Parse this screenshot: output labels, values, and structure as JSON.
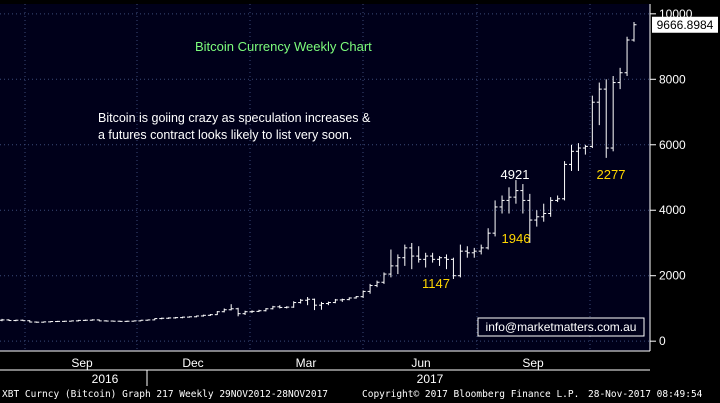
{
  "chart_data": {
    "type": "ohlc",
    "title": "Bitcoin Currency Weekly Chart",
    "annotation": "Bitcoin is goiing crazy as speculation increases &\na futures contract looks likely to list very soon.",
    "contact": "info@marketmatters.com.au",
    "last_price_label": "9666.8984",
    "ylim": [
      -300,
      10300
    ],
    "y_ticks": [
      0,
      2000,
      4000,
      6000,
      8000,
      10000
    ],
    "y_tick_labels": [
      "0",
      "2000",
      "4000",
      "6000",
      "8000",
      "10000"
    ],
    "x_month_labels": [
      "Sep",
      "Dec",
      "Mar",
      "Jun",
      "Sep"
    ],
    "x_year_labels": [
      "2016",
      "2017"
    ],
    "callouts": [
      {
        "text": "4921",
        "color": "#ffffff"
      },
      {
        "text": "1946",
        "color": "#ffd700"
      },
      {
        "text": "1147",
        "color": "#ffd700"
      },
      {
        "text": "2277",
        "color": "#ffd700"
      }
    ],
    "series": [
      {
        "name": "XBT Curncy",
        "values": [
          {
            "o": 640,
            "h": 680,
            "l": 610,
            "c": 650
          },
          {
            "o": 650,
            "h": 670,
            "l": 620,
            "c": 630
          },
          {
            "o": 630,
            "h": 655,
            "l": 610,
            "c": 640
          },
          {
            "o": 640,
            "h": 660,
            "l": 620,
            "c": 625
          },
          {
            "o": 625,
            "h": 640,
            "l": 570,
            "c": 585
          },
          {
            "o": 585,
            "h": 600,
            "l": 560,
            "c": 580
          },
          {
            "o": 580,
            "h": 600,
            "l": 565,
            "c": 590
          },
          {
            "o": 590,
            "h": 610,
            "l": 575,
            "c": 600
          },
          {
            "o": 600,
            "h": 620,
            "l": 585,
            "c": 605
          },
          {
            "o": 605,
            "h": 620,
            "l": 590,
            "c": 610
          },
          {
            "o": 610,
            "h": 630,
            "l": 600,
            "c": 620
          },
          {
            "o": 620,
            "h": 650,
            "l": 605,
            "c": 635
          },
          {
            "o": 635,
            "h": 660,
            "l": 620,
            "c": 640
          },
          {
            "o": 640,
            "h": 670,
            "l": 625,
            "c": 650
          },
          {
            "o": 650,
            "h": 665,
            "l": 610,
            "c": 620
          },
          {
            "o": 620,
            "h": 640,
            "l": 600,
            "c": 615
          },
          {
            "o": 615,
            "h": 630,
            "l": 600,
            "c": 610
          },
          {
            "o": 610,
            "h": 625,
            "l": 595,
            "c": 605
          },
          {
            "o": 605,
            "h": 625,
            "l": 590,
            "c": 610
          },
          {
            "o": 610,
            "h": 630,
            "l": 600,
            "c": 620
          },
          {
            "o": 620,
            "h": 650,
            "l": 610,
            "c": 640
          },
          {
            "o": 640,
            "h": 660,
            "l": 625,
            "c": 650
          },
          {
            "o": 650,
            "h": 700,
            "l": 640,
            "c": 690
          },
          {
            "o": 690,
            "h": 720,
            "l": 670,
            "c": 700
          },
          {
            "o": 700,
            "h": 730,
            "l": 680,
            "c": 710
          },
          {
            "o": 710,
            "h": 740,
            "l": 690,
            "c": 720
          },
          {
            "o": 720,
            "h": 750,
            "l": 700,
            "c": 735
          },
          {
            "o": 735,
            "h": 760,
            "l": 720,
            "c": 745
          },
          {
            "o": 745,
            "h": 780,
            "l": 730,
            "c": 770
          },
          {
            "o": 770,
            "h": 810,
            "l": 750,
            "c": 790
          },
          {
            "o": 790,
            "h": 830,
            "l": 770,
            "c": 810
          },
          {
            "o": 810,
            "h": 920,
            "l": 800,
            "c": 900
          },
          {
            "o": 900,
            "h": 1000,
            "l": 880,
            "c": 960
          },
          {
            "o": 960,
            "h": 1130,
            "l": 940,
            "c": 990
          },
          {
            "o": 990,
            "h": 1020,
            "l": 760,
            "c": 840
          },
          {
            "o": 840,
            "h": 930,
            "l": 800,
            "c": 900
          },
          {
            "o": 900,
            "h": 940,
            "l": 860,
            "c": 910
          },
          {
            "o": 910,
            "h": 960,
            "l": 890,
            "c": 930
          },
          {
            "o": 930,
            "h": 1010,
            "l": 910,
            "c": 990
          },
          {
            "o": 990,
            "h": 1080,
            "l": 970,
            "c": 1050
          },
          {
            "o": 1050,
            "h": 1100,
            "l": 1000,
            "c": 1030
          },
          {
            "o": 1030,
            "h": 1070,
            "l": 1000,
            "c": 1040
          },
          {
            "o": 1040,
            "h": 1220,
            "l": 1020,
            "c": 1180
          },
          {
            "o": 1180,
            "h": 1290,
            "l": 1150,
            "c": 1250
          },
          {
            "o": 1250,
            "h": 1350,
            "l": 1100,
            "c": 1280
          },
          {
            "o": 1280,
            "h": 1300,
            "l": 950,
            "c": 1100
          },
          {
            "o": 1100,
            "h": 1200,
            "l": 960,
            "c": 1150
          },
          {
            "o": 1150,
            "h": 1210,
            "l": 1100,
            "c": 1180
          },
          {
            "o": 1180,
            "h": 1290,
            "l": 1160,
            "c": 1260
          },
          {
            "o": 1260,
            "h": 1300,
            "l": 1200,
            "c": 1270
          },
          {
            "o": 1270,
            "h": 1340,
            "l": 1250,
            "c": 1320
          },
          {
            "o": 1320,
            "h": 1380,
            "l": 1300,
            "c": 1360
          },
          {
            "o": 1360,
            "h": 1550,
            "l": 1320,
            "c": 1520
          },
          {
            "o": 1520,
            "h": 1750,
            "l": 1450,
            "c": 1700
          },
          {
            "o": 1700,
            "h": 1850,
            "l": 1650,
            "c": 1800
          },
          {
            "o": 1800,
            "h": 2100,
            "l": 1750,
            "c": 2050
          },
          {
            "o": 2050,
            "h": 2800,
            "l": 1950,
            "c": 2300
          },
          {
            "o": 2300,
            "h": 2650,
            "l": 2050,
            "c": 2550
          },
          {
            "o": 2550,
            "h": 2950,
            "l": 2300,
            "c": 2850
          },
          {
            "o": 2850,
            "h": 3000,
            "l": 2200,
            "c": 2600
          },
          {
            "o": 2600,
            "h": 2900,
            "l": 2400,
            "c": 2500
          },
          {
            "o": 2500,
            "h": 2700,
            "l": 2250,
            "c": 2600
          },
          {
            "o": 2600,
            "h": 2700,
            "l": 2400,
            "c": 2500
          },
          {
            "o": 2500,
            "h": 2600,
            "l": 2300,
            "c": 2550
          },
          {
            "o": 2550,
            "h": 2650,
            "l": 2200,
            "c": 2500
          },
          {
            "o": 2500,
            "h": 2550,
            "l": 1900,
            "c": 2000
          },
          {
            "o": 2000,
            "h": 2950,
            "l": 1950,
            "c": 2750
          },
          {
            "o": 2750,
            "h": 2900,
            "l": 2550,
            "c": 2700
          },
          {
            "o": 2700,
            "h": 2850,
            "l": 2550,
            "c": 2750
          },
          {
            "o": 2750,
            "h": 2950,
            "l": 2650,
            "c": 2850
          },
          {
            "o": 2850,
            "h": 3450,
            "l": 2800,
            "c": 3300
          },
          {
            "o": 3300,
            "h": 4300,
            "l": 3200,
            "c": 4100
          },
          {
            "o": 4100,
            "h": 4450,
            "l": 3900,
            "c": 4300
          },
          {
            "o": 4300,
            "h": 4700,
            "l": 3900,
            "c": 4400
          },
          {
            "o": 4400,
            "h": 4921,
            "l": 4200,
            "c": 4600
          },
          {
            "o": 4600,
            "h": 4800,
            "l": 3900,
            "c": 4300
          },
          {
            "o": 4300,
            "h": 4500,
            "l": 3000,
            "c": 3700
          },
          {
            "o": 3700,
            "h": 4000,
            "l": 3500,
            "c": 3800
          },
          {
            "o": 3800,
            "h": 4200,
            "l": 3650,
            "c": 3900
          },
          {
            "o": 3900,
            "h": 4400,
            "l": 3800,
            "c": 4300
          },
          {
            "o": 4300,
            "h": 4450,
            "l": 4250,
            "c": 4350
          },
          {
            "o": 4350,
            "h": 5500,
            "l": 4300,
            "c": 5400
          },
          {
            "o": 5400,
            "h": 6000,
            "l": 5200,
            "c": 5800
          },
          {
            "o": 5800,
            "h": 6050,
            "l": 5200,
            "c": 5900
          },
          {
            "o": 5900,
            "h": 6000,
            "l": 5700,
            "c": 5950
          },
          {
            "o": 5950,
            "h": 7500,
            "l": 5900,
            "c": 7300
          },
          {
            "o": 7300,
            "h": 7900,
            "l": 6600,
            "c": 7700
          },
          {
            "o": 7700,
            "h": 8000,
            "l": 5600,
            "c": 5900
          },
          {
            "o": 5900,
            "h": 8100,
            "l": 5800,
            "c": 7900
          },
          {
            "o": 7900,
            "h": 8350,
            "l": 7700,
            "c": 8200
          },
          {
            "o": 8200,
            "h": 9300,
            "l": 8100,
            "c": 9200
          },
          {
            "o": 9200,
            "h": 9750,
            "l": 9150,
            "c": 9666
          }
        ]
      }
    ]
  },
  "footer": {
    "left": "XBT Curncy (Bitcoin) Graph 217  Weekly 29NOV2012-28NOV2017",
    "center": "Copyright© 2017 Bloomberg Finance L.P.",
    "right": "28-Nov-2017 08:49:54"
  },
  "colors": {
    "background": "#000000",
    "plot_background": "#00001a",
    "grid": "#3b4a78",
    "bars": "#ffffff",
    "title": "#7cfc7c",
    "callout_yellow": "#ffd700"
  }
}
